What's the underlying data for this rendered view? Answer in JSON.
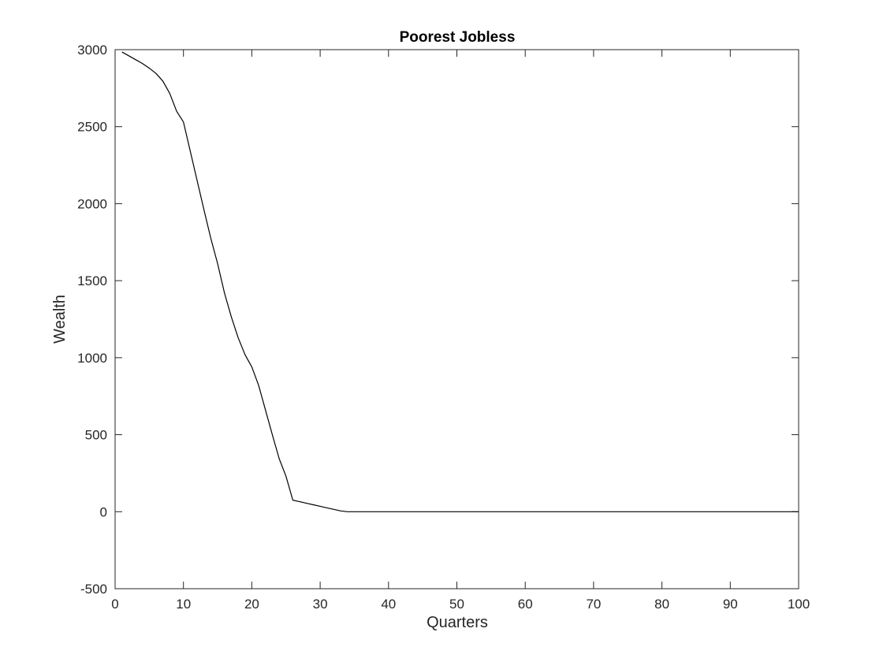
{
  "chart_data": {
    "type": "line",
    "title": "Poorest Jobless",
    "xlabel": "Quarters",
    "ylabel": "Wealth",
    "xlim": [
      0,
      100
    ],
    "ylim": [
      -500,
      3000
    ],
    "xticks": [
      0,
      10,
      20,
      30,
      40,
      50,
      60,
      70,
      80,
      90,
      100
    ],
    "yticks": [
      -500,
      0,
      500,
      1000,
      1500,
      2000,
      2500,
      3000
    ],
    "xtick_labels": [
      "0",
      "10",
      "20",
      "30",
      "40",
      "50",
      "60",
      "70",
      "80",
      "90",
      "100"
    ],
    "ytick_labels": [
      "-500",
      "0",
      "500",
      "1000",
      "1500",
      "2000",
      "2500",
      "3000"
    ],
    "grid": false,
    "series": [
      {
        "color": "#000000",
        "x": [
          1,
          2,
          3,
          4,
          5,
          6,
          7,
          8,
          9,
          10,
          11,
          12,
          13,
          14,
          15,
          16,
          17,
          18,
          19,
          20,
          21,
          22,
          23,
          24,
          25,
          26,
          27,
          28,
          29,
          30,
          31,
          32,
          33,
          34,
          35,
          36,
          37,
          38,
          39,
          40,
          50,
          60,
          70,
          80,
          90,
          100
        ],
        "y": [
          2985,
          2960,
          2935,
          2910,
          2880,
          2845,
          2795,
          2715,
          2600,
          2530,
          2340,
          2150,
          1960,
          1775,
          1610,
          1420,
          1265,
          1130,
          1020,
          940,
          820,
          660,
          500,
          345,
          230,
          75,
          65,
          55,
          45,
          35,
          25,
          15,
          5,
          0,
          0,
          0,
          0,
          0,
          0,
          0,
          0,
          0,
          0,
          0,
          0,
          0
        ]
      }
    ]
  }
}
